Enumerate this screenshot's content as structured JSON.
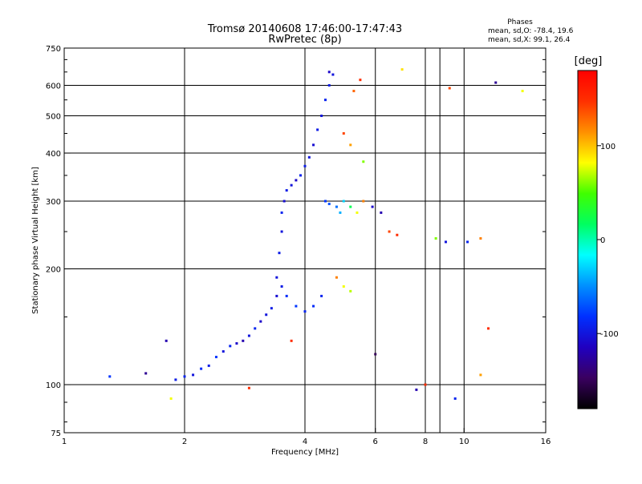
{
  "chart_data": {
    "type": "scatter",
    "title_line1": "Tromsø 20140608 17:46:00-17:47:43",
    "title_line2": "RwPretec (8p)",
    "info": {
      "heading": "Phases",
      "line_o": "mean, sd,O: -78.4, 19.6",
      "line_x": "mean, sd,X:  99.1, 26.4"
    },
    "xlabel": "Frequency [MHz]",
    "ylabel": "Stationary phase Virtual Height [km]",
    "x_scale": "log",
    "y_scale": "log",
    "xlim": [
      1,
      16
    ],
    "ylim": [
      75,
      750
    ],
    "x_ticks": [
      {
        "value": 1,
        "label": "1"
      },
      {
        "value": 2,
        "label": "2"
      },
      {
        "value": 4,
        "label": "4"
      },
      {
        "value": 6,
        "label": "6"
      },
      {
        "value": 8,
        "label": "8"
      },
      {
        "value": 10,
        "label": "10"
      },
      {
        "value": 16,
        "label": "16"
      }
    ],
    "x_gridlines": [
      2,
      4,
      6,
      8,
      8.7,
      10
    ],
    "y_ticks": [
      {
        "value": 75,
        "label": "75"
      },
      {
        "value": 100,
        "label": "100"
      },
      {
        "value": 200,
        "label": "200"
      },
      {
        "value": 300,
        "label": "300"
      },
      {
        "value": 400,
        "label": "400"
      },
      {
        "value": 500,
        "label": "500"
      },
      {
        "value": 600,
        "label": "600"
      },
      {
        "value": 750,
        "label": "750"
      }
    ],
    "y_gridlines": [
      100,
      200,
      300,
      400,
      500,
      600
    ],
    "colorbar": {
      "label": "[deg]",
      "range": [
        -180,
        180
      ],
      "ticks": [
        {
          "value": 100,
          "label": "100"
        },
        {
          "value": 0,
          "label": "0"
        },
        {
          "value": -100,
          "label": "-100"
        }
      ],
      "colors": [
        "#000000",
        "#3a0060",
        "#2000c0",
        "#0030ff",
        "#0090ff",
        "#00ffff",
        "#00ff60",
        "#40ff00",
        "#ffff00",
        "#ff9000",
        "#ff3000",
        "#ff0000"
      ]
    },
    "series": [
      {
        "points": [
          [
            1.9,
            103,
            -95
          ],
          [
            2.0,
            105,
            -90
          ],
          [
            2.1,
            106,
            -100
          ],
          [
            2.2,
            110,
            -85
          ],
          [
            2.3,
            112,
            -95
          ],
          [
            2.4,
            118,
            -80
          ],
          [
            2.5,
            122,
            -100
          ],
          [
            2.6,
            126,
            -90
          ],
          [
            2.7,
            128,
            -110
          ],
          [
            2.8,
            130,
            -120
          ],
          [
            2.9,
            134,
            -100
          ],
          [
            3.0,
            140,
            -90
          ],
          [
            3.1,
            146,
            -110
          ],
          [
            3.2,
            152,
            -100
          ],
          [
            3.3,
            158,
            -95
          ],
          [
            3.4,
            170,
            -105
          ],
          [
            3.4,
            190,
            -100
          ],
          [
            3.45,
            220,
            -95
          ],
          [
            3.5,
            250,
            -100
          ],
          [
            3.5,
            280,
            -90
          ],
          [
            3.55,
            300,
            -105
          ],
          [
            3.6,
            320,
            -95
          ],
          [
            3.7,
            330,
            -100
          ],
          [
            3.8,
            340,
            -110
          ],
          [
            3.9,
            350,
            -90
          ],
          [
            4.0,
            370,
            -95
          ],
          [
            4.1,
            390,
            -100
          ],
          [
            4.2,
            420,
            -105
          ],
          [
            4.3,
            460,
            -95
          ],
          [
            4.4,
            500,
            -100
          ],
          [
            4.5,
            550,
            -90
          ],
          [
            4.6,
            600,
            -95
          ],
          [
            4.7,
            640,
            -100
          ],
          [
            3.5,
            180,
            -95
          ],
          [
            3.6,
            170,
            -85
          ],
          [
            3.8,
            160,
            -80
          ],
          [
            4.0,
            155,
            -90
          ],
          [
            4.2,
            160,
            -85
          ],
          [
            4.4,
            170,
            -90
          ],
          [
            4.5,
            300,
            -80
          ],
          [
            4.6,
            295,
            -70
          ],
          [
            4.8,
            290,
            -60
          ],
          [
            4.9,
            280,
            -40
          ],
          [
            5.0,
            300,
            -30
          ],
          [
            5.2,
            290,
            20
          ],
          [
            5.4,
            280,
            80
          ],
          [
            5.6,
            300,
            120
          ],
          [
            5.9,
            290,
            -110
          ],
          [
            6.2,
            280,
            -120
          ],
          [
            5.0,
            180,
            80
          ],
          [
            4.8,
            190,
            120
          ],
          [
            5.2,
            175,
            70
          ],
          [
            6.5,
            250,
            140
          ],
          [
            6.8,
            245,
            150
          ],
          [
            8.5,
            240,
            60
          ],
          [
            9.0,
            235,
            -100
          ],
          [
            10.2,
            235,
            -90
          ],
          [
            11.0,
            240,
            120
          ],
          [
            5.5,
            620,
            150
          ],
          [
            5.3,
            580,
            130
          ],
          [
            5.0,
            450,
            140
          ],
          [
            5.2,
            420,
            110
          ],
          [
            5.6,
            380,
            60
          ],
          [
            4.6,
            650,
            -110
          ],
          [
            1.3,
            105,
            -80
          ],
          [
            1.6,
            107,
            -130
          ],
          [
            1.8,
            130,
            -120
          ],
          [
            2.9,
            98,
            150
          ],
          [
            1.85,
            92,
            80
          ],
          [
            12,
            610,
            -130
          ],
          [
            14,
            580,
            80
          ],
          [
            9.2,
            590,
            140
          ],
          [
            7.0,
            660,
            90
          ],
          [
            11.5,
            140,
            150
          ],
          [
            11.0,
            106,
            110
          ],
          [
            9.5,
            92,
            -90
          ],
          [
            7.6,
            97,
            -120
          ],
          [
            8.0,
            100,
            150
          ],
          [
            6.0,
            120,
            -150
          ],
          [
            3.7,
            130,
            150
          ]
        ]
      }
    ]
  }
}
